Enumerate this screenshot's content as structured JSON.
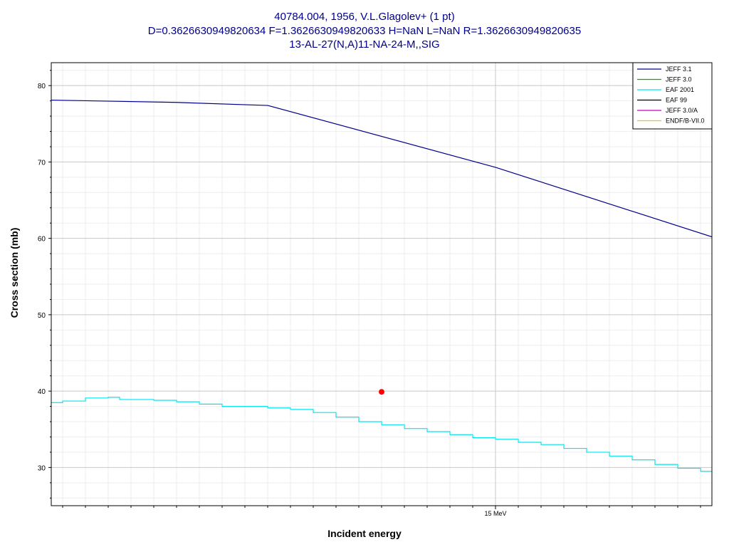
{
  "chart_data": {
    "type": "line",
    "title_lines": [
      "40784.004, 1956, V.L.Glagolev+ (1 pt)",
      "D=0.3626630949820634 F=1.3626630949820633 H=NaN L=NaN R=1.3626630949820635",
      "13-AL-27(N,A)11-NA-24-M,,SIG"
    ],
    "xlabel": "Incident energy",
    "ylabel": "Cross section (mb)",
    "x_unit": "MeV",
    "xlim": [
      13.05,
      15.95
    ],
    "ylim": [
      25,
      83
    ],
    "x_ticks": [
      {
        "value": 15,
        "label": "15 MeV"
      }
    ],
    "y_ticks": [
      30,
      40,
      50,
      60,
      70,
      80
    ],
    "grid": true,
    "legend_position": "top-right",
    "series": [
      {
        "name": "JEFF 3.1",
        "color": "#00008b",
        "step": false,
        "points": [
          [
            13.05,
            78.1
          ],
          [
            13.6,
            77.8
          ],
          [
            14.0,
            77.4
          ],
          [
            15.0,
            69.3
          ],
          [
            15.95,
            60.2
          ]
        ]
      },
      {
        "name": "JEFF 3.0",
        "color": "#00b000",
        "points": []
      },
      {
        "name": "EAF 2001",
        "color": "#00e5ee",
        "step": true,
        "points": [
          [
            13.05,
            38.5
          ],
          [
            13.1,
            38.7
          ],
          [
            13.2,
            39.1
          ],
          [
            13.3,
            39.2
          ],
          [
            13.35,
            38.9
          ],
          [
            13.5,
            38.8
          ],
          [
            13.6,
            38.6
          ],
          [
            13.7,
            38.3
          ],
          [
            13.8,
            38.0
          ],
          [
            14.0,
            37.8
          ],
          [
            14.1,
            37.6
          ],
          [
            14.2,
            37.2
          ],
          [
            14.3,
            36.6
          ],
          [
            14.4,
            36.0
          ],
          [
            14.5,
            35.6
          ],
          [
            14.6,
            35.1
          ],
          [
            14.7,
            34.7
          ],
          [
            14.8,
            34.3
          ],
          [
            14.9,
            33.9
          ],
          [
            15.0,
            33.7
          ],
          [
            15.1,
            33.3
          ],
          [
            15.2,
            33.0
          ],
          [
            15.3,
            32.5
          ],
          [
            15.4,
            32.0
          ],
          [
            15.5,
            31.5
          ],
          [
            15.6,
            31.0
          ],
          [
            15.7,
            30.4
          ],
          [
            15.8,
            29.9
          ],
          [
            15.9,
            29.5
          ],
          [
            15.95,
            29.5
          ]
        ]
      },
      {
        "name": "EAF 99",
        "color": "#000000",
        "points": []
      },
      {
        "name": "JEFF 3.0/A",
        "color": "#cc00cc",
        "points": []
      },
      {
        "name": "ENDF/B-VII.0",
        "color": "#e6c800",
        "points": []
      }
    ],
    "experimental_points": [
      {
        "x": 14.5,
        "y": 39.9,
        "color": "#ff0000"
      }
    ]
  }
}
